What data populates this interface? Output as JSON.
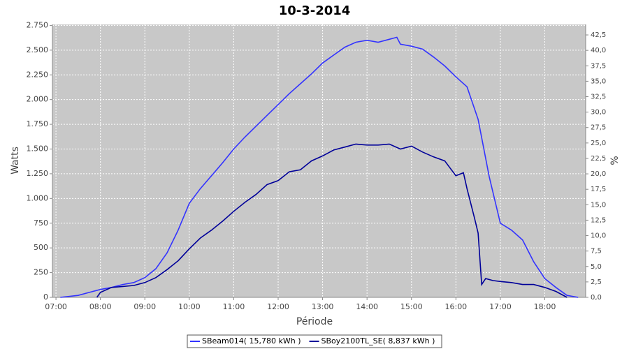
{
  "chart_data": {
    "type": "line",
    "title": "10-3-2014",
    "x_label": "Période",
    "y_label": "Watts",
    "y2_label": "%",
    "xlim": [
      6.92,
      18.92
    ],
    "xticks": [
      {
        "value": 7,
        "label": "07:00"
      },
      {
        "value": 8,
        "label": "08:00"
      },
      {
        "value": 9,
        "label": "09:00"
      },
      {
        "value": 10,
        "label": "10:00"
      },
      {
        "value": 11,
        "label": "11:00"
      },
      {
        "value": 12,
        "label": "12:00"
      },
      {
        "value": 13,
        "label": "13:00"
      },
      {
        "value": 14,
        "label": "14:00"
      },
      {
        "value": 15,
        "label": "15:00"
      },
      {
        "value": 16,
        "label": "16:00"
      },
      {
        "value": 17,
        "label": "17:00"
      },
      {
        "value": 18,
        "label": "18:00"
      }
    ],
    "ylim": [
      0,
      2760
    ],
    "yticks": [
      0,
      250,
      500,
      750,
      {
        "value": 1000,
        "label": "1.000"
      },
      {
        "value": 1250,
        "label": "1.250"
      },
      {
        "value": 1500,
        "label": "1.500"
      },
      {
        "value": 1750,
        "label": "1.750"
      },
      {
        "value": 2000,
        "label": "2.000"
      },
      {
        "value": 2250,
        "label": "2.250"
      },
      {
        "value": 2500,
        "label": "2.500"
      },
      {
        "value": 2750,
        "label": "2.750"
      }
    ],
    "y2lim": [
      0,
      44.2
    ],
    "y2ticks": [
      {
        "value": 0,
        "label": "0,0"
      },
      {
        "value": 2.5,
        "label": "2,5"
      },
      {
        "value": 5,
        "label": "5,0"
      },
      {
        "value": 7.5,
        "label": "7,5"
      },
      {
        "value": 10,
        "label": "10,0"
      },
      {
        "value": 12.5,
        "label": "12,5"
      },
      {
        "value": 15,
        "label": "15,0"
      },
      {
        "value": 17.5,
        "label": "17,5"
      },
      {
        "value": 20,
        "label": "20,0"
      },
      {
        "value": 22.5,
        "label": "22,5"
      },
      {
        "value": 25,
        "label": "25,0"
      },
      {
        "value": 27.5,
        "label": "27,5"
      },
      {
        "value": 30,
        "label": "30,0"
      },
      {
        "value": 32.5,
        "label": "32,5"
      },
      {
        "value": 35,
        "label": "35,0"
      },
      {
        "value": 37.5,
        "label": "37,5"
      },
      {
        "value": 40,
        "label": "40,0"
      },
      {
        "value": 42.5,
        "label": "42,5"
      }
    ],
    "grid": true,
    "series": [
      {
        "name": "SBeam014( 15,780 kWh )",
        "color": "#3333ff",
        "x": [
          7.1,
          7.5,
          7.75,
          8,
          8.25,
          8.5,
          8.75,
          9,
          9.25,
          9.5,
          9.75,
          10,
          10.25,
          10.5,
          10.75,
          11,
          11.25,
          11.5,
          11.75,
          12,
          12.25,
          12.5,
          12.75,
          13,
          13.25,
          13.5,
          13.75,
          14,
          14.25,
          14.5,
          14.67,
          14.75,
          15,
          15.25,
          15.5,
          15.75,
          16,
          16.25,
          16.5,
          16.75,
          17,
          17.25,
          17.5,
          17.75,
          18,
          18.25,
          18.5,
          18.75
        ],
        "values": [
          0,
          20,
          50,
          80,
          100,
          130,
          150,
          200,
          290,
          450,
          680,
          950,
          1100,
          1230,
          1360,
          1500,
          1620,
          1730,
          1840,
          1950,
          2060,
          2160,
          2260,
          2370,
          2450,
          2530,
          2580,
          2600,
          2580,
          2610,
          2630,
          2560,
          2540,
          2510,
          2430,
          2340,
          2230,
          2130,
          1800,
          1220,
          750,
          680,
          580,
          360,
          190,
          100,
          20,
          0
        ]
      },
      {
        "name": "SBoy2100TL_SE( 8,837 kWh )",
        "color": "#000099",
        "x": [
          7.92,
          8,
          8.25,
          8.5,
          8.75,
          9,
          9.25,
          9.5,
          9.75,
          10,
          10.25,
          10.5,
          10.75,
          11,
          11.25,
          11.5,
          11.75,
          12,
          12.25,
          12.5,
          12.75,
          13,
          13.25,
          13.5,
          13.75,
          14,
          14.25,
          14.5,
          14.75,
          15,
          15.25,
          15.5,
          15.75,
          16,
          16.17,
          16.25,
          16.42,
          16.5,
          16.58,
          16.67,
          16.83,
          17,
          17.25,
          17.5,
          17.75,
          18,
          18.25,
          18.5
        ],
        "values": [
          0,
          50,
          100,
          110,
          120,
          150,
          200,
          280,
          370,
          490,
          600,
          680,
          770,
          870,
          960,
          1040,
          1140,
          1180,
          1270,
          1290,
          1380,
          1430,
          1490,
          1520,
          1550,
          1540,
          1540,
          1550,
          1500,
          1530,
          1470,
          1420,
          1380,
          1230,
          1260,
          1100,
          800,
          650,
          130,
          190,
          170,
          160,
          150,
          130,
          130,
          100,
          60,
          0
        ]
      }
    ]
  }
}
